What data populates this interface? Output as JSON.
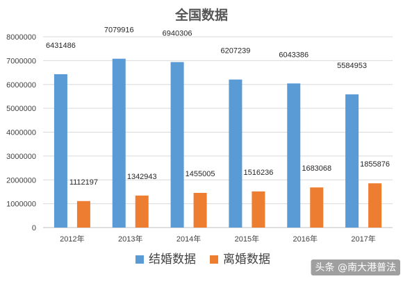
{
  "chart_data": {
    "type": "bar",
    "title": "全国数据",
    "categories": [
      "2012年",
      "2013年",
      "2014年",
      "2015年",
      "2016年",
      "2017年"
    ],
    "series": [
      {
        "name": "结婚数据",
        "color": "#5b9bd5",
        "values": [
          6431486,
          7079916,
          6940306,
          6207239,
          6043386,
          5584953
        ]
      },
      {
        "name": "离婚数据",
        "color": "#ed7d31",
        "values": [
          1112197,
          1342943,
          1455005,
          1516236,
          1683068,
          1855876
        ]
      }
    ],
    "ylim": [
      0,
      8000000
    ],
    "yticks": [
      0,
      1000000,
      2000000,
      3000000,
      4000000,
      5000000,
      6000000,
      7000000,
      8000000
    ],
    "grid": true,
    "legend": "bottom",
    "xlabel": "",
    "ylabel": ""
  },
  "watermark": "头条 @南大港普法"
}
